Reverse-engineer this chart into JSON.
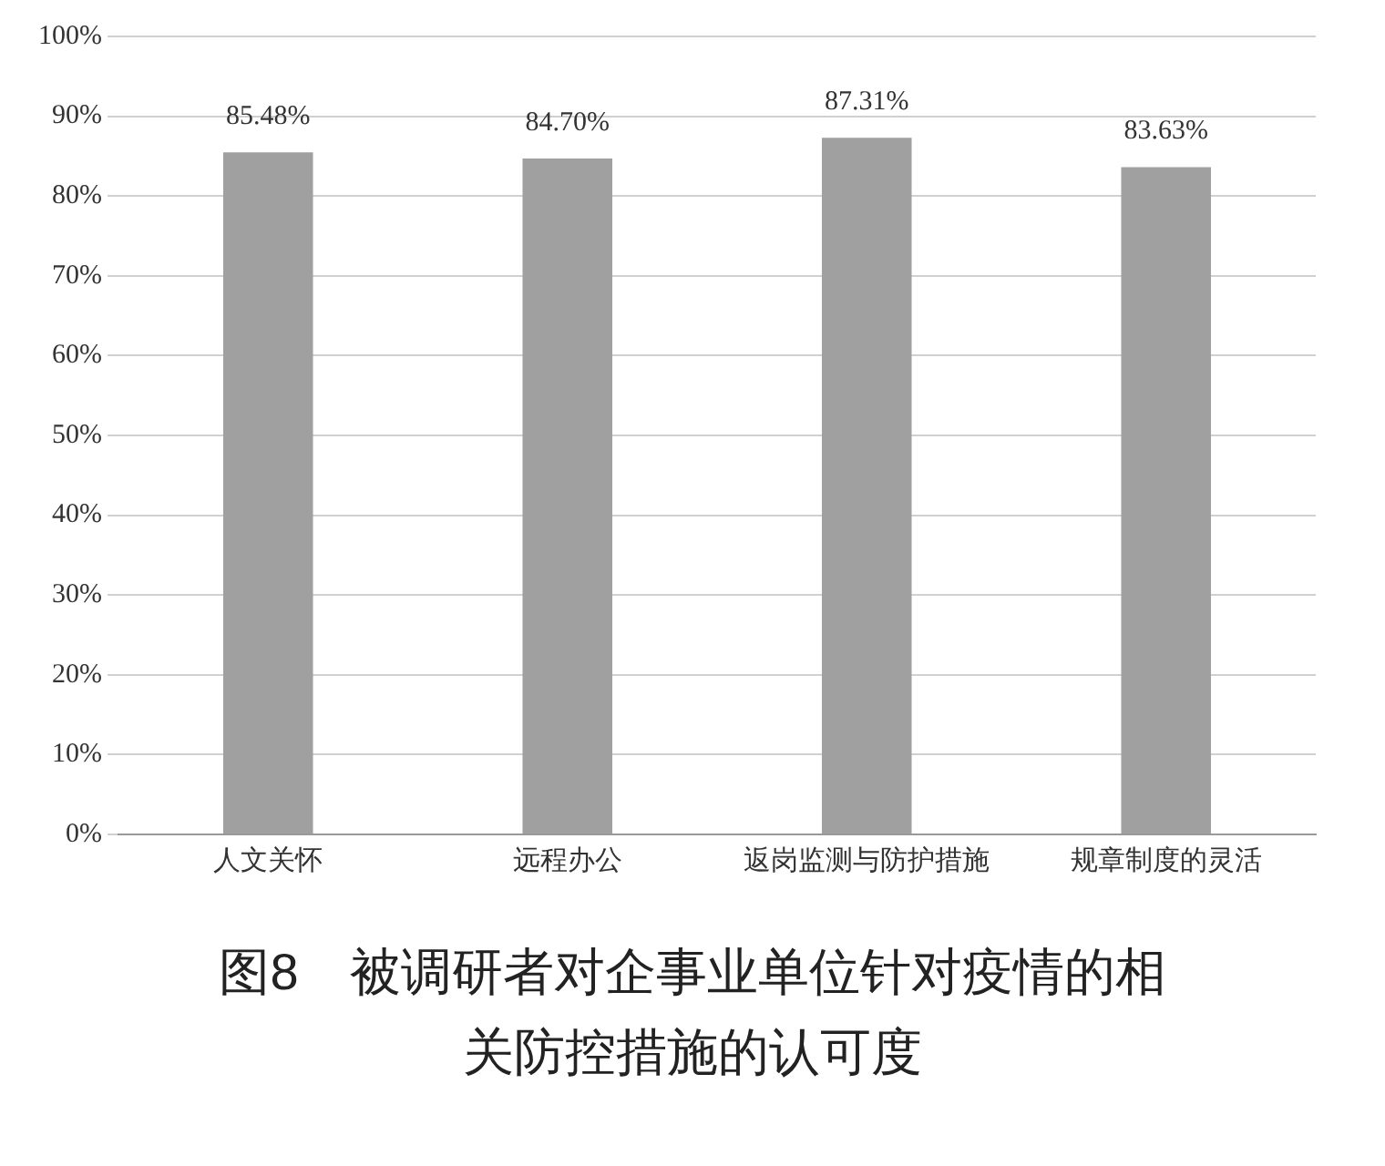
{
  "chart_data": {
    "type": "bar",
    "title": "图8　被调研者对企事业单位针对疫情的相关防控措施的认可度",
    "categories": [
      "人文关怀",
      "远程办公",
      "返岗监测与防护措施",
      "规章制度的灵活"
    ],
    "values": [
      85.48,
      84.7,
      87.31,
      83.63
    ],
    "color": "#a0a0a0",
    "value_labels": [
      "85.48%",
      "84.70%",
      "87.31%",
      "83.63%"
    ],
    "ylim": [
      0,
      100
    ],
    "yticks": [
      {
        "value": 0,
        "label": "0%"
      },
      {
        "value": 10,
        "label": "10%"
      },
      {
        "value": 20,
        "label": "20%"
      },
      {
        "value": 30,
        "label": "30%"
      },
      {
        "value": 40,
        "label": "40%"
      },
      {
        "value": 50,
        "label": "50%"
      },
      {
        "value": 60,
        "label": "60%"
      },
      {
        "value": 70,
        "label": "70%"
      },
      {
        "value": 80,
        "label": "80%"
      },
      {
        "value": 90,
        "label": "90%"
      },
      {
        "value": 100,
        "label": "100%"
      }
    ],
    "grid": "y",
    "legend": false
  }
}
